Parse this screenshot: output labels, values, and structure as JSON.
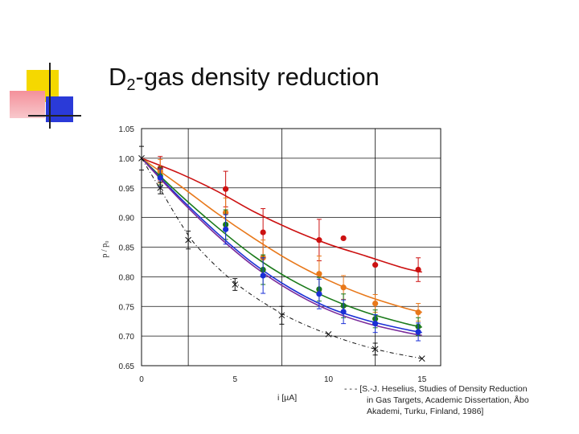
{
  "slide": {
    "title_main": "D",
    "title_sub": "2",
    "title_rest": "-gas density reduction",
    "reference": [
      "- - - [S.-J. Heselius, Studies of Density Reduction",
      "in Gas Targets, Academic Dissertation, Åbo",
      "Akademi, Turku, Finland, 1986]"
    ]
  },
  "colors": {
    "red": "#cc1111",
    "orange": "#e8781a",
    "green": "#1a7a1a",
    "blue": "#1a2fd6",
    "purple": "#7a2a9a",
    "black": "#111111",
    "deco_yellow": "#f5d800",
    "deco_red": "#f06070",
    "deco_blue": "#2a3ad8"
  },
  "chart_data": {
    "type": "scatter",
    "xlabel": "i [µA]",
    "ylabel": "p / p₀",
    "xlim": [
      0,
      16
    ],
    "ylim": [
      0.65,
      1.05
    ],
    "x_ticks": [
      0,
      5,
      10,
      15
    ],
    "y_ticks": [
      0.65,
      0.7,
      0.75,
      0.8,
      0.85,
      0.9,
      0.95,
      1.0,
      1.05
    ],
    "x_tick_labels": [
      "0",
      "5",
      "10",
      "15"
    ],
    "y_tick_labels": [
      "0.65",
      "0.70",
      "0.75",
      "0.80",
      "0.85",
      "0.90",
      "0.95",
      "1.00",
      "1.05"
    ],
    "grid": true,
    "series": [
      {
        "color": "red",
        "marker": "dot",
        "x": [
          1,
          4.5,
          6.5,
          9.5,
          10.8,
          12.5,
          14.8
        ],
        "y": [
          0.983,
          0.948,
          0.875,
          0.862,
          0.865,
          0.82,
          0.812
        ],
        "err": [
          0.02,
          0.03,
          0.04,
          0.035,
          0.0,
          0.0,
          0.02
        ],
        "fit": [
          [
            0,
            1.0
          ],
          [
            2,
            0.975
          ],
          [
            4,
            0.945
          ],
          [
            6,
            0.91
          ],
          [
            8,
            0.88
          ],
          [
            10,
            0.855
          ],
          [
            12,
            0.835
          ],
          [
            14,
            0.815
          ],
          [
            15,
            0.808
          ]
        ]
      },
      {
        "color": "orange",
        "marker": "dot",
        "x": [
          1,
          4.5,
          6.5,
          9.5,
          10.8,
          12.5,
          14.8
        ],
        "y": [
          0.978,
          0.908,
          0.832,
          0.805,
          0.782,
          0.755,
          0.74
        ],
        "err": [
          0.02,
          0.025,
          0.03,
          0.03,
          0.02,
          0.015,
          0.015
        ],
        "fit": [
          [
            0,
            1.0
          ],
          [
            2,
            0.955
          ],
          [
            4,
            0.908
          ],
          [
            6,
            0.865
          ],
          [
            8,
            0.826
          ],
          [
            10,
            0.794
          ],
          [
            12,
            0.768
          ],
          [
            14,
            0.748
          ],
          [
            15,
            0.74
          ]
        ]
      },
      {
        "color": "green",
        "marker": "dot",
        "x": [
          1,
          4.5,
          6.5,
          9.5,
          10.8,
          12.5,
          14.8
        ],
        "y": [
          0.97,
          0.888,
          0.812,
          0.779,
          0.751,
          0.729,
          0.716
        ],
        "err": [
          0.015,
          0.025,
          0.025,
          0.02,
          0.02,
          0.015,
          0.015
        ],
        "fit": [
          [
            0,
            1.0
          ],
          [
            2,
            0.94
          ],
          [
            4,
            0.885
          ],
          [
            6,
            0.835
          ],
          [
            8,
            0.795
          ],
          [
            10,
            0.764
          ],
          [
            12,
            0.74
          ],
          [
            14,
            0.722
          ],
          [
            15,
            0.715
          ]
        ]
      },
      {
        "color": "blue",
        "marker": "dot",
        "x": [
          1,
          4.5,
          6.5,
          9.5,
          10.8,
          12.5,
          14.8
        ],
        "y": [
          0.967,
          0.88,
          0.802,
          0.771,
          0.741,
          0.721,
          0.707
        ],
        "err": [
          0.015,
          0.025,
          0.03,
          0.025,
          0.02,
          0.015,
          0.015
        ],
        "fit": [
          [
            0,
            1.0
          ],
          [
            2,
            0.935
          ],
          [
            4,
            0.875
          ],
          [
            6,
            0.822
          ],
          [
            8,
            0.78
          ],
          [
            10,
            0.748
          ],
          [
            12,
            0.727
          ],
          [
            14,
            0.712
          ],
          [
            15,
            0.706
          ]
        ]
      },
      {
        "color": "purple",
        "marker": "none",
        "x": [],
        "y": [],
        "err": [],
        "fit": [
          [
            0,
            1.0
          ],
          [
            2,
            0.932
          ],
          [
            4,
            0.871
          ],
          [
            6,
            0.818
          ],
          [
            8,
            0.776
          ],
          [
            10,
            0.744
          ],
          [
            12,
            0.722
          ],
          [
            14,
            0.707
          ],
          [
            15,
            0.701
          ]
        ]
      },
      {
        "color": "black",
        "marker": "x",
        "dashed": true,
        "x": [
          0,
          1,
          2.5,
          5,
          7.5,
          10,
          12.5,
          15
        ],
        "y": [
          1.0,
          0.95,
          0.862,
          0.787,
          0.735,
          0.703,
          0.678,
          0.662
        ],
        "err": [
          0.02,
          0.01,
          0.015,
          0.01,
          0.015,
          0.0,
          0.01,
          0.0
        ],
        "fit": [
          [
            0,
            1.0
          ],
          [
            1,
            0.948
          ],
          [
            2,
            0.895
          ],
          [
            3,
            0.85
          ],
          [
            5,
            0.79
          ],
          [
            7.5,
            0.738
          ],
          [
            10,
            0.703
          ],
          [
            12.5,
            0.678
          ],
          [
            15,
            0.662
          ]
        ]
      }
    ]
  }
}
